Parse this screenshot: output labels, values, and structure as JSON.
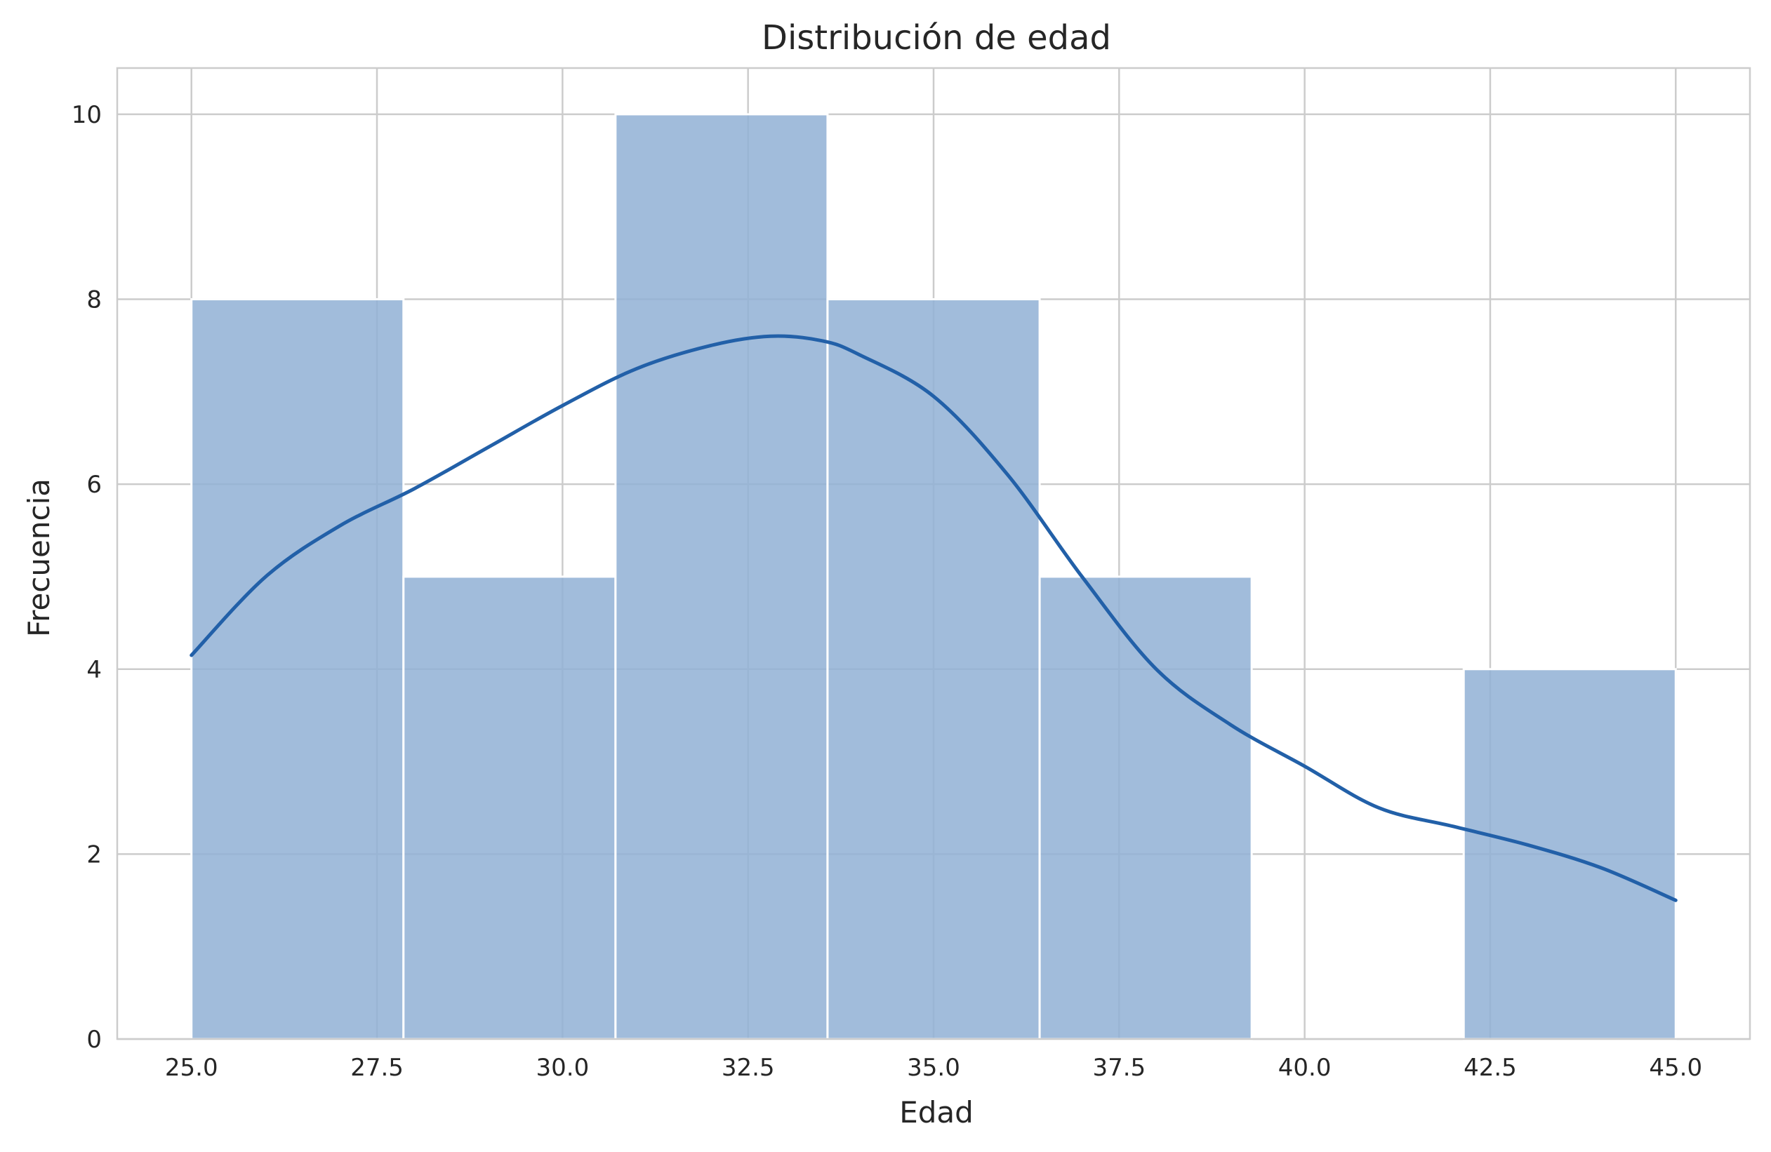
{
  "chart_data": {
    "type": "bar",
    "subtype": "histogram_with_kde",
    "title": "Distribución de edad",
    "xlabel": "Edad",
    "ylabel": "Frecuencia",
    "xlim": [
      24.0,
      46.0
    ],
    "ylim": [
      0,
      10.5
    ],
    "x_ticks": [
      25.0,
      27.5,
      30.0,
      32.5,
      35.0,
      37.5,
      40.0,
      42.5,
      45.0
    ],
    "x_tick_labels": [
      "25.0",
      "27.5",
      "30.0",
      "32.5",
      "35.0",
      "37.5",
      "40.0",
      "42.5",
      "45.0"
    ],
    "y_ticks": [
      0,
      2,
      4,
      6,
      8,
      10
    ],
    "y_tick_labels": [
      "0",
      "2",
      "4",
      "6",
      "8",
      "10"
    ],
    "bins": [
      {
        "start": 25.0,
        "end": 27.857,
        "count": 8
      },
      {
        "start": 27.857,
        "end": 30.714,
        "count": 5
      },
      {
        "start": 30.714,
        "end": 33.571,
        "count": 10
      },
      {
        "start": 33.571,
        "end": 36.429,
        "count": 8
      },
      {
        "start": 36.429,
        "end": 39.286,
        "count": 5
      },
      {
        "start": 39.286,
        "end": 42.143,
        "count": 0
      },
      {
        "start": 42.143,
        "end": 45.0,
        "count": 4
      }
    ],
    "kde": {
      "x": [
        25.0,
        26.0,
        27.0,
        28.0,
        29.0,
        30.0,
        31.0,
        32.0,
        32.8,
        33.5,
        34.0,
        35.0,
        36.0,
        37.0,
        38.0,
        39.0,
        40.0,
        41.0,
        42.0,
        43.0,
        44.0,
        45.0
      ],
      "y": [
        4.15,
        5.0,
        5.55,
        5.95,
        6.4,
        6.85,
        7.25,
        7.5,
        7.6,
        7.55,
        7.4,
        6.95,
        6.1,
        5.0,
        4.0,
        3.4,
        2.95,
        2.5,
        2.3,
        2.1,
        1.85,
        1.5
      ]
    },
    "grid": true,
    "colors": {
      "bar_fill": "#91b0d5",
      "bar_edge": "#ffffff",
      "kde_line": "#2260a8",
      "grid": "#cccccc",
      "text": "#262626"
    }
  }
}
